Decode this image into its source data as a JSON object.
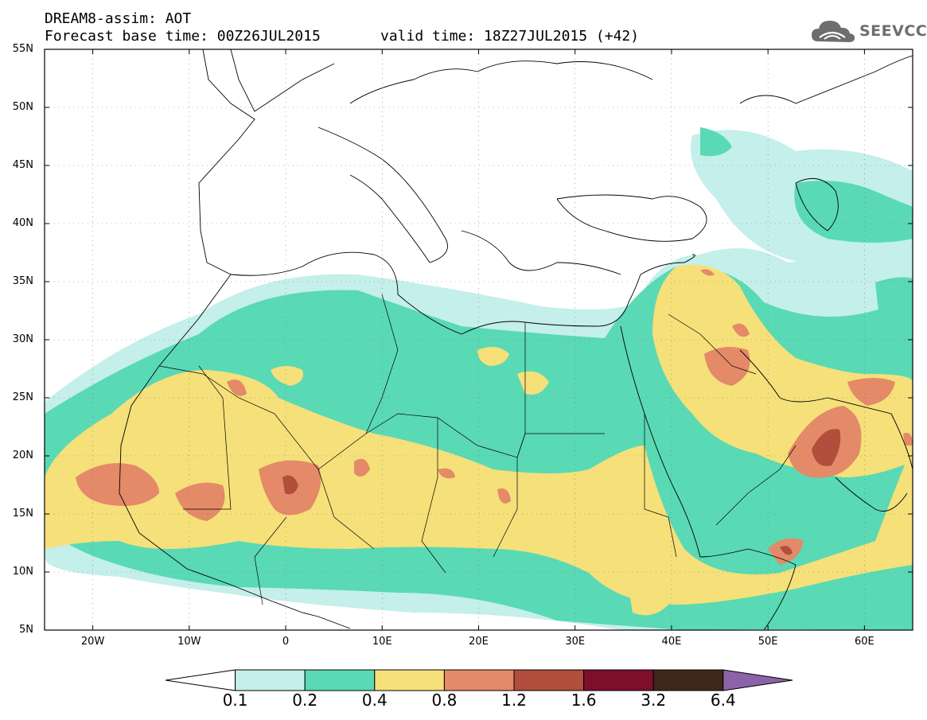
{
  "header": {
    "title": "DREAM8-assim: AOT",
    "forecast_base": "Forecast base time: 00Z26JUL2015",
    "valid_time": "valid time: 18Z27JUL2015 (+42)"
  },
  "logo": {
    "text": "SEEVCCC",
    "icon": "cloud-icon",
    "color": "#6e6e6e"
  },
  "map": {
    "lat_range": [
      5,
      55
    ],
    "lon_range": [
      -25,
      65
    ],
    "lat_labels": [
      "55N",
      "50N",
      "45N",
      "40N",
      "35N",
      "30N",
      "25N",
      "20N",
      "15N",
      "10N",
      "5N"
    ],
    "lon_labels": [
      "20W",
      "10W",
      "0",
      "10E",
      "20E",
      "30E",
      "40E",
      "50E",
      "60E"
    ],
    "grid": true
  },
  "colorbar": {
    "labels": [
      "0.1",
      "0.2",
      "0.4",
      "0.8",
      "1.2",
      "1.6",
      "3.2",
      "6.4"
    ],
    "colors": [
      "#ffffff",
      "#c4efea",
      "#5ad9b5",
      "#f5e07a",
      "#e48a68",
      "#b14e3c",
      "#7e0f2a",
      "#3f2819",
      "#8c62a8"
    ]
  },
  "field_colors": {
    "c1": "#c4efea",
    "c2": "#5ad9b5",
    "c3": "#f5e07a",
    "c4": "#e48a68",
    "c5": "#b14e3c"
  }
}
